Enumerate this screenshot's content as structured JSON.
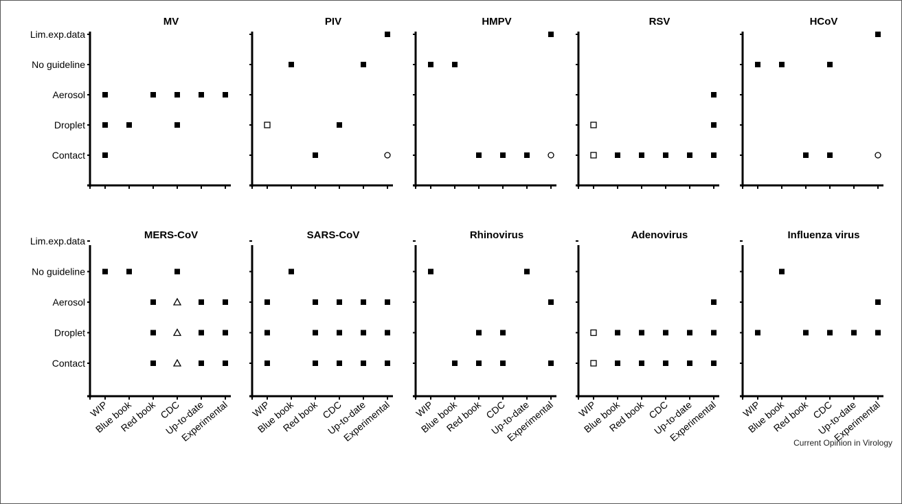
{
  "figure": {
    "credit": "Current Opinion in Virology",
    "y_categories": [
      "Contact",
      "Droplet",
      "Aerosol",
      "No guideline",
      "Lim.exp.data"
    ],
    "x_categories": [
      "WIP",
      "Blue book",
      "Red book",
      "CDC",
      "Up-to-date",
      "Experimental"
    ],
    "marker_legend": {
      "filled-square": "filled square",
      "open-square": "open square",
      "open-circle": "open circle",
      "open-triangle": "open triangle"
    },
    "colors": {
      "ink": "#000000",
      "background": "#ffffff"
    }
  },
  "chart_data": [
    {
      "type": "scatter",
      "title": "MV",
      "x": [
        "WIP",
        "Blue book",
        "Red book",
        "CDC",
        "Up-to-date",
        "Experimental"
      ],
      "y_levels": [
        "Contact",
        "Droplet",
        "Aerosol",
        "No guideline",
        "Lim.exp.data"
      ],
      "points": [
        {
          "x": "WIP",
          "y": "Aerosol",
          "marker": "filled-square"
        },
        {
          "x": "WIP",
          "y": "Droplet",
          "marker": "filled-square"
        },
        {
          "x": "WIP",
          "y": "Contact",
          "marker": "filled-square"
        },
        {
          "x": "Blue book",
          "y": "Droplet",
          "marker": "filled-square"
        },
        {
          "x": "Red book",
          "y": "Aerosol",
          "marker": "filled-square"
        },
        {
          "x": "CDC",
          "y": "Aerosol",
          "marker": "filled-square"
        },
        {
          "x": "CDC",
          "y": "Droplet",
          "marker": "filled-square"
        },
        {
          "x": "Up-to-date",
          "y": "Aerosol",
          "marker": "filled-square"
        },
        {
          "x": "Experimental",
          "y": "Aerosol",
          "marker": "filled-square"
        }
      ]
    },
    {
      "type": "scatter",
      "title": "PIV",
      "x": [
        "WIP",
        "Blue book",
        "Red book",
        "CDC",
        "Up-to-date",
        "Experimental"
      ],
      "y_levels": [
        "Contact",
        "Droplet",
        "Aerosol",
        "No guideline",
        "Lim.exp.data"
      ],
      "points": [
        {
          "x": "WIP",
          "y": "Droplet",
          "marker": "open-square"
        },
        {
          "x": "Blue book",
          "y": "No guideline",
          "marker": "filled-square"
        },
        {
          "x": "Red book",
          "y": "Contact",
          "marker": "filled-square"
        },
        {
          "x": "CDC",
          "y": "Droplet",
          "marker": "filled-square"
        },
        {
          "x": "Up-to-date",
          "y": "No guideline",
          "marker": "filled-square"
        },
        {
          "x": "Experimental",
          "y": "Lim.exp.data",
          "marker": "filled-square"
        },
        {
          "x": "Experimental",
          "y": "Contact",
          "marker": "open-circle"
        }
      ]
    },
    {
      "type": "scatter",
      "title": "HMPV",
      "x": [
        "WIP",
        "Blue book",
        "Red book",
        "CDC",
        "Up-to-date",
        "Experimental"
      ],
      "y_levels": [
        "Contact",
        "Droplet",
        "Aerosol",
        "No guideline",
        "Lim.exp.data"
      ],
      "points": [
        {
          "x": "WIP",
          "y": "No guideline",
          "marker": "filled-square"
        },
        {
          "x": "Blue book",
          "y": "No guideline",
          "marker": "filled-square"
        },
        {
          "x": "Red book",
          "y": "Contact",
          "marker": "filled-square"
        },
        {
          "x": "CDC",
          "y": "Contact",
          "marker": "filled-square"
        },
        {
          "x": "Up-to-date",
          "y": "Contact",
          "marker": "filled-square"
        },
        {
          "x": "Experimental",
          "y": "Lim.exp.data",
          "marker": "filled-square"
        },
        {
          "x": "Experimental",
          "y": "Contact",
          "marker": "open-circle"
        }
      ]
    },
    {
      "type": "scatter",
      "title": "RSV",
      "x": [
        "WIP",
        "Blue book",
        "Red book",
        "CDC",
        "Up-to-date",
        "Experimental"
      ],
      "y_levels": [
        "Contact",
        "Droplet",
        "Aerosol",
        "No guideline",
        "Lim.exp.data"
      ],
      "points": [
        {
          "x": "WIP",
          "y": "Droplet",
          "marker": "open-square"
        },
        {
          "x": "WIP",
          "y": "Contact",
          "marker": "open-square"
        },
        {
          "x": "Blue book",
          "y": "Contact",
          "marker": "filled-square"
        },
        {
          "x": "Red book",
          "y": "Contact",
          "marker": "filled-square"
        },
        {
          "x": "CDC",
          "y": "Contact",
          "marker": "filled-square"
        },
        {
          "x": "Up-to-date",
          "y": "Contact",
          "marker": "filled-square"
        },
        {
          "x": "Experimental",
          "y": "Aerosol",
          "marker": "filled-square"
        },
        {
          "x": "Experimental",
          "y": "Droplet",
          "marker": "filled-square"
        },
        {
          "x": "Experimental",
          "y": "Contact",
          "marker": "filled-square"
        }
      ]
    },
    {
      "type": "scatter",
      "title": "HCoV",
      "x": [
        "WIP",
        "Blue book",
        "Red book",
        "CDC",
        "Up-to-date",
        "Experimental"
      ],
      "y_levels": [
        "Contact",
        "Droplet",
        "Aerosol",
        "No guideline",
        "Lim.exp.data"
      ],
      "points": [
        {
          "x": "WIP",
          "y": "No guideline",
          "marker": "filled-square"
        },
        {
          "x": "Blue book",
          "y": "No guideline",
          "marker": "filled-square"
        },
        {
          "x": "Red book",
          "y": "Contact",
          "marker": "filled-square"
        },
        {
          "x": "CDC",
          "y": "No guideline",
          "marker": "filled-square"
        },
        {
          "x": "CDC",
          "y": "Contact",
          "marker": "filled-square"
        },
        {
          "x": "Experimental",
          "y": "Lim.exp.data",
          "marker": "filled-square"
        },
        {
          "x": "Experimental",
          "y": "Contact",
          "marker": "open-circle"
        }
      ]
    },
    {
      "type": "scatter",
      "title": "MERS-CoV",
      "x": [
        "WIP",
        "Blue book",
        "Red book",
        "CDC",
        "Up-to-date",
        "Experimental"
      ],
      "y_levels": [
        "Contact",
        "Droplet",
        "Aerosol",
        "No guideline",
        "Lim.exp.data"
      ],
      "points": [
        {
          "x": "WIP",
          "y": "No guideline",
          "marker": "filled-square"
        },
        {
          "x": "Blue book",
          "y": "No guideline",
          "marker": "filled-square"
        },
        {
          "x": "Red book",
          "y": "Aerosol",
          "marker": "filled-square"
        },
        {
          "x": "Red book",
          "y": "Droplet",
          "marker": "filled-square"
        },
        {
          "x": "Red book",
          "y": "Contact",
          "marker": "filled-square"
        },
        {
          "x": "CDC",
          "y": "No guideline",
          "marker": "filled-square"
        },
        {
          "x": "CDC",
          "y": "Aerosol",
          "marker": "open-triangle"
        },
        {
          "x": "CDC",
          "y": "Droplet",
          "marker": "open-triangle"
        },
        {
          "x": "CDC",
          "y": "Contact",
          "marker": "open-triangle"
        },
        {
          "x": "Up-to-date",
          "y": "Aerosol",
          "marker": "filled-square"
        },
        {
          "x": "Up-to-date",
          "y": "Droplet",
          "marker": "filled-square"
        },
        {
          "x": "Up-to-date",
          "y": "Contact",
          "marker": "filled-square"
        },
        {
          "x": "Experimental",
          "y": "Aerosol",
          "marker": "filled-square"
        },
        {
          "x": "Experimental",
          "y": "Droplet",
          "marker": "filled-square"
        },
        {
          "x": "Experimental",
          "y": "Contact",
          "marker": "filled-square"
        }
      ]
    },
    {
      "type": "scatter",
      "title": "SARS-CoV",
      "x": [
        "WIP",
        "Blue book",
        "Red book",
        "CDC",
        "Up-to-date",
        "Experimental"
      ],
      "y_levels": [
        "Contact",
        "Droplet",
        "Aerosol",
        "No guideline",
        "Lim.exp.data"
      ],
      "points": [
        {
          "x": "WIP",
          "y": "Aerosol",
          "marker": "filled-square"
        },
        {
          "x": "WIP",
          "y": "Droplet",
          "marker": "filled-square"
        },
        {
          "x": "WIP",
          "y": "Contact",
          "marker": "filled-square"
        },
        {
          "x": "Blue book",
          "y": "No guideline",
          "marker": "filled-square"
        },
        {
          "x": "Red book",
          "y": "Aerosol",
          "marker": "filled-square"
        },
        {
          "x": "Red book",
          "y": "Droplet",
          "marker": "filled-square"
        },
        {
          "x": "Red book",
          "y": "Contact",
          "marker": "filled-square"
        },
        {
          "x": "CDC",
          "y": "Aerosol",
          "marker": "filled-square"
        },
        {
          "x": "CDC",
          "y": "Droplet",
          "marker": "filled-square"
        },
        {
          "x": "CDC",
          "y": "Contact",
          "marker": "filled-square"
        },
        {
          "x": "Up-to-date",
          "y": "Aerosol",
          "marker": "filled-square"
        },
        {
          "x": "Up-to-date",
          "y": "Droplet",
          "marker": "filled-square"
        },
        {
          "x": "Up-to-date",
          "y": "Contact",
          "marker": "filled-square"
        },
        {
          "x": "Experimental",
          "y": "Aerosol",
          "marker": "filled-square"
        },
        {
          "x": "Experimental",
          "y": "Droplet",
          "marker": "filled-square"
        },
        {
          "x": "Experimental",
          "y": "Contact",
          "marker": "filled-square"
        }
      ]
    },
    {
      "type": "scatter",
      "title": "Rhinovirus",
      "x": [
        "WIP",
        "Blue book",
        "Red book",
        "CDC",
        "Up-to-date",
        "Experimental"
      ],
      "y_levels": [
        "Contact",
        "Droplet",
        "Aerosol",
        "No guideline",
        "Lim.exp.data"
      ],
      "points": [
        {
          "x": "WIP",
          "y": "No guideline",
          "marker": "filled-square"
        },
        {
          "x": "Blue book",
          "y": "Contact",
          "marker": "filled-square"
        },
        {
          "x": "Red book",
          "y": "Droplet",
          "marker": "filled-square"
        },
        {
          "x": "Red book",
          "y": "Contact",
          "marker": "filled-square"
        },
        {
          "x": "CDC",
          "y": "Droplet",
          "marker": "filled-square"
        },
        {
          "x": "CDC",
          "y": "Contact",
          "marker": "filled-square"
        },
        {
          "x": "Up-to-date",
          "y": "No guideline",
          "marker": "filled-square"
        },
        {
          "x": "Experimental",
          "y": "Aerosol",
          "marker": "filled-square"
        },
        {
          "x": "Experimental",
          "y": "Contact",
          "marker": "filled-square"
        }
      ]
    },
    {
      "type": "scatter",
      "title": "Adenovirus",
      "x": [
        "WIP",
        "Blue book",
        "Red book",
        "CDC",
        "Up-to-date",
        "Experimental"
      ],
      "y_levels": [
        "Contact",
        "Droplet",
        "Aerosol",
        "No guideline",
        "Lim.exp.data"
      ],
      "points": [
        {
          "x": "WIP",
          "y": "Droplet",
          "marker": "open-square"
        },
        {
          "x": "WIP",
          "y": "Contact",
          "marker": "open-square"
        },
        {
          "x": "Blue book",
          "y": "Droplet",
          "marker": "filled-square"
        },
        {
          "x": "Blue book",
          "y": "Contact",
          "marker": "filled-square"
        },
        {
          "x": "Red book",
          "y": "Droplet",
          "marker": "filled-square"
        },
        {
          "x": "Red book",
          "y": "Contact",
          "marker": "filled-square"
        },
        {
          "x": "CDC",
          "y": "Droplet",
          "marker": "filled-square"
        },
        {
          "x": "CDC",
          "y": "Contact",
          "marker": "filled-square"
        },
        {
          "x": "Up-to-date",
          "y": "Droplet",
          "marker": "filled-square"
        },
        {
          "x": "Up-to-date",
          "y": "Contact",
          "marker": "filled-square"
        },
        {
          "x": "Experimental",
          "y": "Aerosol",
          "marker": "filled-square"
        },
        {
          "x": "Experimental",
          "y": "Droplet",
          "marker": "filled-square"
        },
        {
          "x": "Experimental",
          "y": "Contact",
          "marker": "filled-square"
        }
      ]
    },
    {
      "type": "scatter",
      "title": "Influenza virus",
      "x": [
        "WIP",
        "Blue book",
        "Red book",
        "CDC",
        "Up-to-date",
        "Experimental"
      ],
      "y_levels": [
        "Contact",
        "Droplet",
        "Aerosol",
        "No guideline",
        "Lim.exp.data"
      ],
      "points": [
        {
          "x": "WIP",
          "y": "Droplet",
          "marker": "filled-square"
        },
        {
          "x": "Blue book",
          "y": "No guideline",
          "marker": "filled-square"
        },
        {
          "x": "Red book",
          "y": "Droplet",
          "marker": "filled-square"
        },
        {
          "x": "CDC",
          "y": "Droplet",
          "marker": "filled-square"
        },
        {
          "x": "Up-to-date",
          "y": "Droplet",
          "marker": "filled-square"
        },
        {
          "x": "Experimental",
          "y": "Aerosol",
          "marker": "filled-square"
        },
        {
          "x": "Experimental",
          "y": "Droplet",
          "marker": "filled-square"
        }
      ]
    }
  ]
}
